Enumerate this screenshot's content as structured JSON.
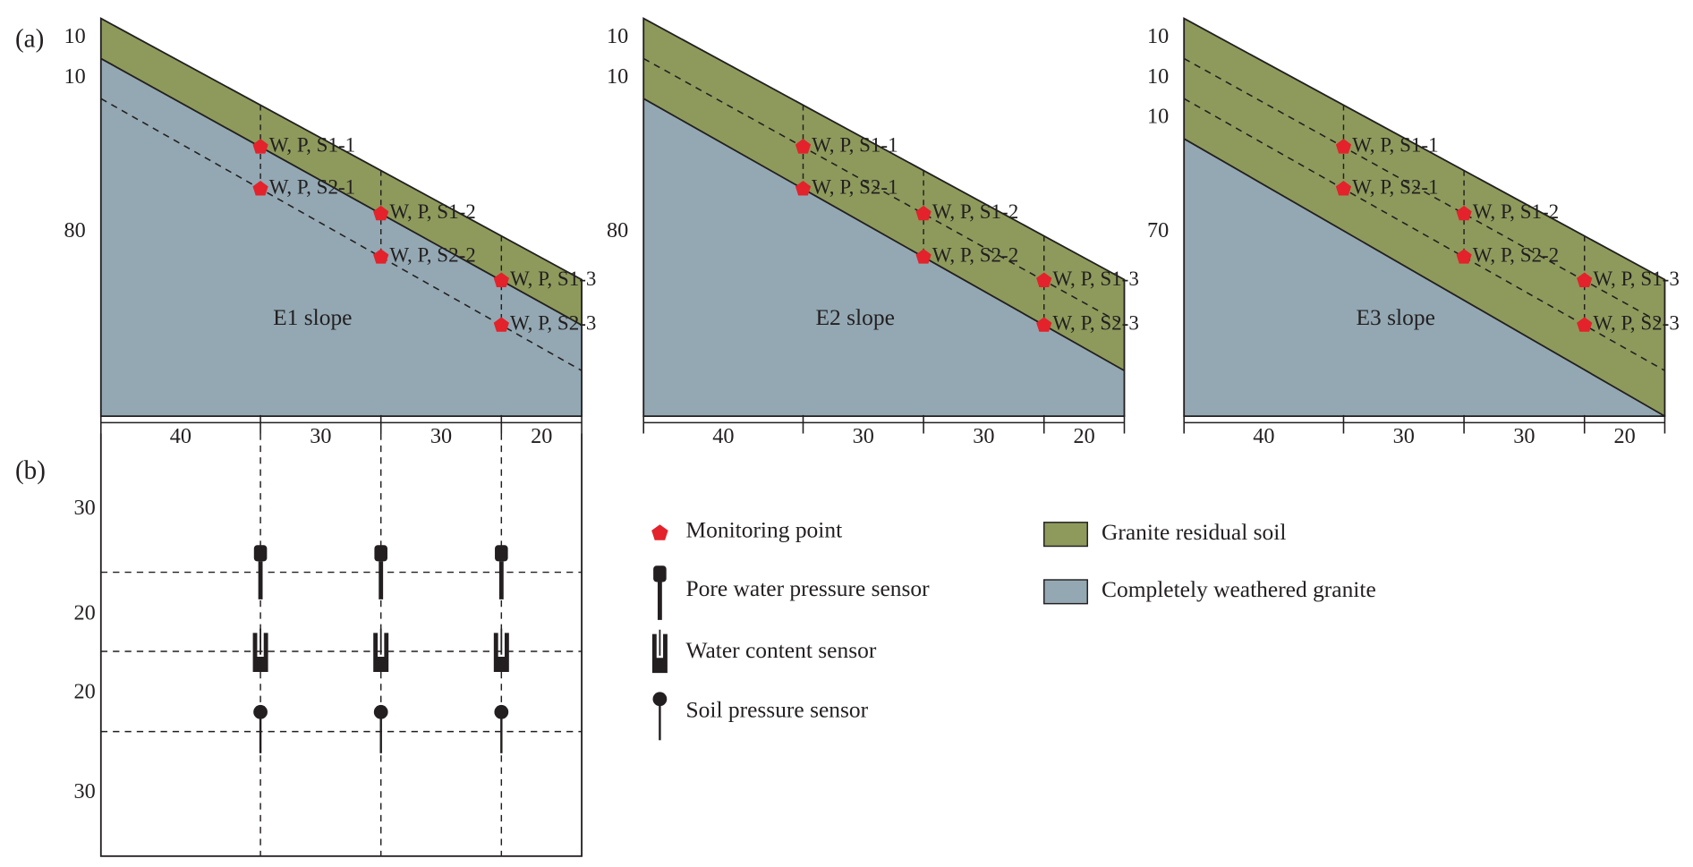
{
  "panel_labels": [
    "(a)",
    "(b)"
  ],
  "slopes": [
    {
      "name": "E1 slope",
      "depth_labels": [
        "10",
        "10",
        "80"
      ],
      "width_labels": [
        "40",
        "30",
        "30",
        "20"
      ],
      "points": [
        "W, P, S1-1",
        "W, P, S2-1",
        "W, P, S1-2",
        "W, P, S2-2",
        "W, P, S1-3",
        "W, P, S2-3"
      ]
    },
    {
      "name": "E2 slope",
      "depth_labels": [
        "10",
        "10",
        "80"
      ],
      "width_labels": [
        "40",
        "30",
        "30",
        "20"
      ],
      "points": [
        "W, P, S1-1",
        "W, P, S2-1",
        "W, P, S1-2",
        "W, P, S2-2",
        "W, P, S1-3",
        "W, P, S2-3"
      ]
    },
    {
      "name": "E3 slope",
      "depth_labels": [
        "10",
        "10",
        "10",
        "70"
      ],
      "width_labels": [
        "40",
        "30",
        "30",
        "20"
      ],
      "points": [
        "W, P, S1-1",
        "W, P, S2-1",
        "W, P, S1-2",
        "W, P, S2-2",
        "W, P, S1-3",
        "W, P, S2-3"
      ]
    }
  ],
  "plan": {
    "depth_labels": [
      "30",
      "20",
      "20",
      "30"
    ]
  },
  "legend": {
    "symbols": [
      "Monitoring point",
      "Pore water pressure sensor",
      "Water content sensor",
      "Soil pressure sensor"
    ],
    "materials": [
      "Granite residual soil",
      "Completely weathered granite"
    ]
  }
}
